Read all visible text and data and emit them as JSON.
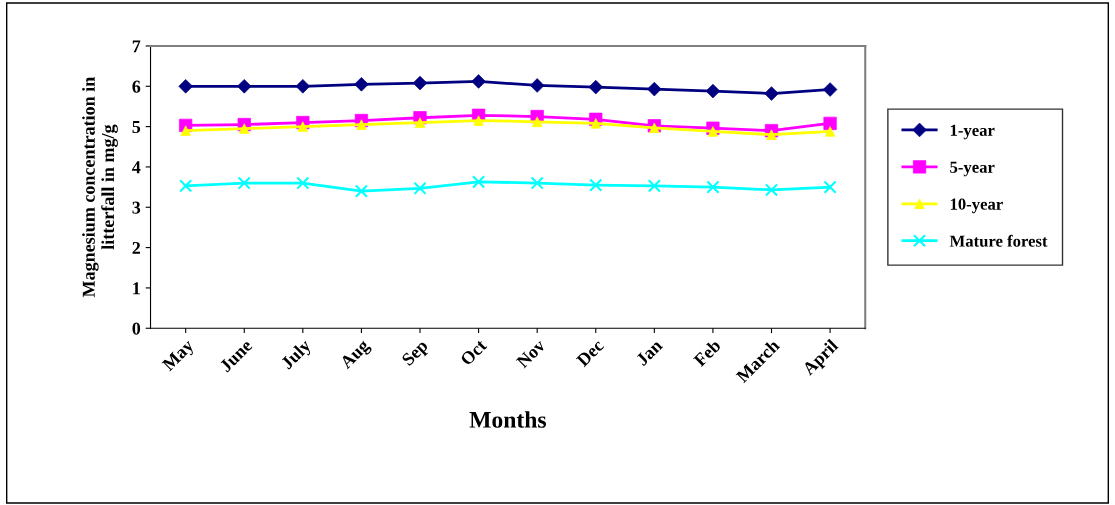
{
  "chart_data": {
    "type": "line",
    "xlabel": "Months",
    "ylabel": "Magnesium concentration in\nlitterfall in mg/g",
    "categories": [
      "May",
      "June",
      "July",
      "Aug",
      "Sep",
      "Oct",
      "Nov",
      "Dec",
      "Jan",
      "Feb",
      "March",
      "April"
    ],
    "series": [
      {
        "name": "1-year",
        "color": "#000080",
        "marker": "diamond",
        "values": [
          6.0,
          6.0,
          6.0,
          6.05,
          6.08,
          6.12,
          6.02,
          5.98,
          5.93,
          5.88,
          5.82,
          5.92
        ]
      },
      {
        "name": "5-year",
        "color": "#ff00ff",
        "marker": "square",
        "values": [
          5.03,
          5.05,
          5.1,
          5.15,
          5.22,
          5.28,
          5.25,
          5.18,
          5.02,
          4.96,
          4.9,
          5.08
        ]
      },
      {
        "name": "10-year",
        "color": "#ffff00",
        "marker": "triangle",
        "values": [
          4.9,
          4.95,
          5.0,
          5.05,
          5.1,
          5.15,
          5.12,
          5.08,
          4.97,
          4.88,
          4.8,
          4.88
        ]
      },
      {
        "name": "Mature forest",
        "color": "#00ffff",
        "marker": "cross",
        "values": [
          3.53,
          3.6,
          3.6,
          3.4,
          3.47,
          3.63,
          3.6,
          3.55,
          3.53,
          3.5,
          3.43,
          3.5
        ]
      }
    ],
    "ylim": [
      0,
      7
    ],
    "yticks": [
      0,
      1,
      2,
      3,
      4,
      5,
      6,
      7
    ],
    "grid": false,
    "legend": "right"
  }
}
